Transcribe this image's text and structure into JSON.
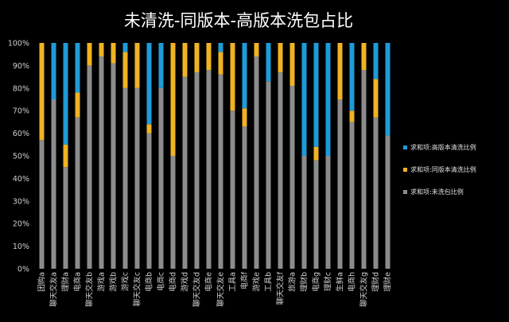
{
  "chart_data": {
    "type": "bar",
    "stacked": true,
    "title": "未清洗-同版本-高版本洗包占比",
    "y_ticks": [
      "0%",
      "10%",
      "20%",
      "30%",
      "40%",
      "50%",
      "60%",
      "70%",
      "80%",
      "90%",
      "100%"
    ],
    "ylim": [
      0,
      100
    ],
    "grid": false,
    "legend_position": "right",
    "categories": [
      "团购a",
      "聊天交友a",
      "理财a",
      "电商a",
      "聊天交友b",
      "游戏a",
      "游戏b",
      "游戏c",
      "聊天交友c",
      "电商b",
      "电商c",
      "电商d",
      "游戏d",
      "聊天交友d",
      "电商e",
      "聊天交友e",
      "工具a",
      "电商f",
      "游戏e",
      "工具b",
      "聊天交友f",
      "旅游a",
      "理财b",
      "电商g",
      "理财c",
      "生鲜a",
      "电商h",
      "聊天交友g",
      "理财d",
      "理财e"
    ],
    "series": [
      {
        "name": "求和项:未洗包比例",
        "color": "#8c8c8c",
        "values": [
          57,
          75,
          45,
          67,
          90,
          94,
          91,
          80,
          80,
          60,
          80,
          50,
          85,
          87,
          88,
          86,
          70,
          63,
          94,
          83,
          87,
          81,
          50,
          48,
          50,
          75,
          65,
          88,
          67,
          59
        ]
      },
      {
        "name": "求和项:同版本清洗比例",
        "color": "#f0b323",
        "values": [
          43,
          0,
          10,
          11,
          10,
          6,
          9,
          16,
          20,
          4,
          0,
          50,
          15,
          13,
          12,
          10,
          30,
          8,
          6,
          0,
          13,
          19,
          0,
          6,
          0,
          25,
          5,
          12,
          17,
          0
        ]
      },
      {
        "name": "求和项:高版本清洗比例",
        "color": "#1f9bd7",
        "values": [
          0,
          25,
          45,
          22,
          0,
          0,
          0,
          4,
          0,
          36,
          20,
          0,
          0,
          0,
          0,
          4,
          0,
          29,
          0,
          17,
          0,
          0,
          50,
          46,
          50,
          0,
          30,
          0,
          16,
          41
        ]
      }
    ]
  }
}
